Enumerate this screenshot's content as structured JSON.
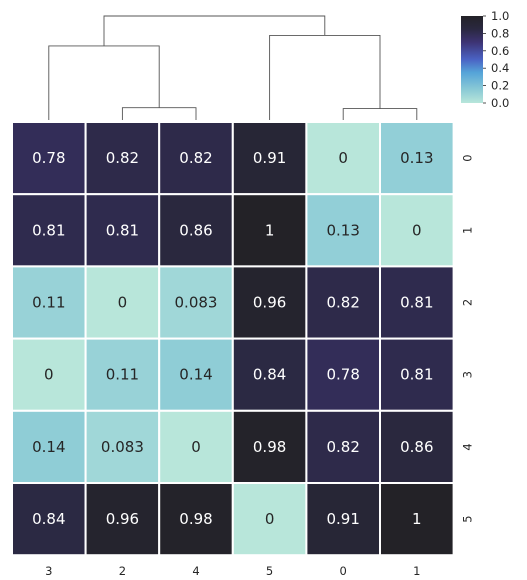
{
  "chart_data": {
    "type": "heatmap",
    "title": "",
    "xlabel": "",
    "ylabel": "",
    "column_labels": [
      "3",
      "2",
      "4",
      "5",
      "0",
      "1"
    ],
    "row_labels": [
      "0",
      "1",
      "2",
      "3",
      "4",
      "5"
    ],
    "values": [
      [
        0.78,
        0.82,
        0.82,
        0.91,
        0,
        0.13
      ],
      [
        0.81,
        0.81,
        0.86,
        1,
        0.13,
        0
      ],
      [
        0.11,
        0,
        0.083,
        0.96,
        0.82,
        0.81
      ],
      [
        0,
        0.11,
        0.14,
        0.84,
        0.78,
        0.81
      ],
      [
        0.14,
        0.083,
        0,
        0.98,
        0.82,
        0.86
      ],
      [
        0.84,
        0.96,
        0.98,
        0,
        0.91,
        1
      ]
    ],
    "annotations": [
      [
        "0.78",
        "0.82",
        "0.82",
        "0.91",
        "0",
        "0.13"
      ],
      [
        "0.81",
        "0.81",
        "0.86",
        "1",
        "0.13",
        "0"
      ],
      [
        "0.11",
        "0",
        "0.083",
        "0.96",
        "0.82",
        "0.81"
      ],
      [
        "0",
        "0.11",
        "0.14",
        "0.84",
        "0.78",
        "0.81"
      ],
      [
        "0.14",
        "0.083",
        "0",
        "0.98",
        "0.82",
        "0.86"
      ],
      [
        "0.84",
        "0.96",
        "0.98",
        "0",
        "0.91",
        "1"
      ]
    ],
    "color_scale": {
      "min": 0,
      "max": 1,
      "stops": [
        {
          "value": 0.0,
          "color": "#b8e6da"
        },
        {
          "value": 0.15,
          "color": "#8ccbd6"
        },
        {
          "value": 0.35,
          "color": "#55a4d8"
        },
        {
          "value": 0.5,
          "color": "#4a63c4"
        },
        {
          "value": 0.7,
          "color": "#3d3373"
        },
        {
          "value": 0.85,
          "color": "#2a2840"
        },
        {
          "value": 1.0,
          "color": "#232227"
        }
      ]
    },
    "colorbar": {
      "ticks": [
        0.0,
        0.2,
        0.4,
        0.6,
        0.8,
        1.0
      ],
      "tick_labels": [
        "0.0",
        "0.2",
        "0.4",
        "0.6",
        "0.8",
        "1.0"
      ]
    },
    "column_dendrogram": [
      {
        "a": 1,
        "b": 2,
        "h": 0.14
      },
      {
        "a": 0,
        "b": "n0",
        "h": 0.84
      },
      {
        "a": 4,
        "b": 5,
        "h": 0.13
      },
      {
        "a": 3,
        "b": "n2",
        "h": 0.96
      },
      {
        "a": "n1",
        "b": "n3",
        "h": 1.18
      }
    ],
    "grid": false,
    "legend_position": "top-right"
  }
}
